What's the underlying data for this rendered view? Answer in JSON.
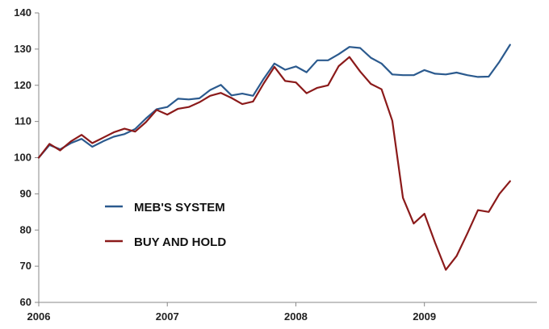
{
  "chart_data": {
    "type": "line",
    "title": "",
    "xlabel": "",
    "ylabel": "",
    "ylim": [
      60,
      140
    ],
    "yticks": [
      60,
      70,
      80,
      90,
      100,
      110,
      120,
      130,
      140
    ],
    "xlim": [
      2006,
      2009.875
    ],
    "xticks": [
      {
        "value": 2006,
        "label": "2006"
      },
      {
        "value": 2007,
        "label": "2007"
      },
      {
        "value": 2008,
        "label": "2008"
      },
      {
        "value": 2009,
        "label": "2009"
      }
    ],
    "grid": false,
    "legend_position": "left-center",
    "x_start": 2006,
    "x_step": 0.083333,
    "series": [
      {
        "name": "MEB'S SYSTEM",
        "color": "#2b5a8e",
        "values": [
          100,
          103.5,
          102.3,
          104,
          105.2,
          103,
          104.5,
          105.8,
          106.5,
          107.9,
          110.8,
          113.4,
          114,
          116.3,
          116.1,
          116.4,
          118.7,
          120.1,
          117.2,
          117.7,
          117.1,
          121.8,
          126,
          124.3,
          125.2,
          123.6,
          126.9,
          126.9,
          128.6,
          130.6,
          130.3,
          127.6,
          126,
          123,
          122.8,
          122.8,
          124.2,
          123.2,
          123,
          123.5,
          122.8,
          122.3,
          122.4,
          126.5,
          131.2
        ]
      },
      {
        "name": "BUY AND HOLD",
        "color": "#8b1a1a",
        "values": [
          100,
          103.8,
          102,
          104.5,
          106.3,
          104,
          105.5,
          107,
          108,
          107.2,
          109.8,
          113.2,
          111.9,
          113.5,
          114,
          115.3,
          117.1,
          117.9,
          116.5,
          114.8,
          115.5,
          120.5,
          125.1,
          121.2,
          120.8,
          117.8,
          119.3,
          120,
          125.3,
          127.8,
          123.8,
          120.4,
          118.9,
          110.2,
          88.9,
          81.8,
          84.5,
          76.5,
          69,
          72.8,
          79,
          85.5,
          85,
          90,
          93.5
        ]
      }
    ]
  }
}
